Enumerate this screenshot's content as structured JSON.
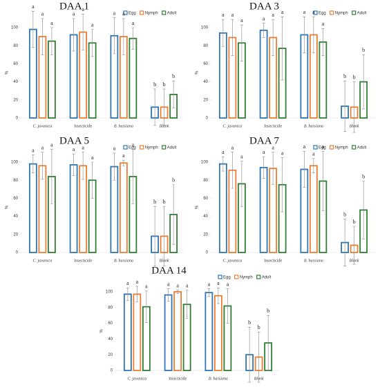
{
  "chart_data": [
    {
      "type": "bar",
      "title": "DAA 1",
      "ylabel": "%",
      "categories": [
        "C. javanica",
        "Insecticide",
        "B. bassiana",
        "Blank"
      ],
      "ylim": [
        0,
        100
      ],
      "yticks": [
        0,
        20,
        40,
        60,
        80,
        100
      ],
      "legend": "upper right",
      "series": [
        {
          "name": "Egg",
          "color": "#2e75b6",
          "values": [
            98,
            92,
            91,
            12
          ],
          "errors": [
            20,
            18,
            20,
            20
          ],
          "letters": [
            "a",
            "a",
            "a",
            "b"
          ]
        },
        {
          "name": "Nymph",
          "color": "#ed7d31",
          "values": [
            90,
            95,
            90,
            12
          ],
          "errors": [
            20,
            20,
            20,
            20
          ],
          "letters": [
            "a",
            "a",
            "a",
            "b"
          ]
        },
        {
          "name": "Adult",
          "color": "#2e7d32",
          "values": [
            85,
            83,
            88,
            26
          ],
          "errors": [
            15,
            15,
            12,
            15
          ],
          "letters": [
            "a",
            "a",
            "a",
            "b"
          ]
        }
      ]
    },
    {
      "type": "bar",
      "title": "DAA 3",
      "ylabel": "%",
      "categories": [
        "C. javanica",
        "Insecticide",
        "B. bassiana",
        "Blank"
      ],
      "ylim": [
        0,
        100
      ],
      "yticks": [
        0,
        20,
        40,
        60,
        80,
        100
      ],
      "legend": "upper right",
      "series": [
        {
          "name": "Egg",
          "color": "#2e75b6",
          "values": [
            94,
            97,
            92,
            13
          ],
          "errors": [
            15,
            8,
            20,
            28
          ],
          "letters": [
            "a",
            "a",
            "a",
            "b"
          ]
        },
        {
          "name": "Nymph",
          "color": "#ed7d31",
          "values": [
            89,
            89,
            92,
            12
          ],
          "errors": [
            20,
            20,
            20,
            28
          ],
          "letters": [
            "a",
            "a",
            "a",
            "b"
          ]
        },
        {
          "name": "Adult",
          "color": "#2e7d32",
          "values": [
            83,
            77,
            84,
            40
          ],
          "errors": [
            20,
            35,
            15,
            30
          ],
          "letters": [
            "a",
            "a",
            "a",
            "b"
          ]
        }
      ]
    },
    {
      "type": "bar",
      "title": "DAA 5",
      "ylabel": "%",
      "categories": [
        "C. javanica",
        "Insecticide",
        "B. bassiana",
        "Blank"
      ],
      "ylim": [
        0,
        100
      ],
      "yticks": [
        0,
        20,
        40,
        60,
        80,
        100
      ],
      "legend": "upper right",
      "series": [
        {
          "name": "Egg",
          "color": "#2e75b6",
          "values": [
            98,
            97,
            95,
            18
          ],
          "errors": [
            10,
            12,
            15,
            33
          ],
          "letters": [
            "a",
            "a",
            "a",
            "b"
          ]
        },
        {
          "name": "Nymph",
          "color": "#ed7d31",
          "values": [
            96,
            96,
            99,
            18
          ],
          "errors": [
            15,
            15,
            3,
            33
          ],
          "letters": [
            "a",
            "a",
            "a",
            "b"
          ]
        },
        {
          "name": "Adult",
          "color": "#2e7d32",
          "values": [
            84,
            80,
            84,
            42
          ],
          "errors": [
            30,
            20,
            30,
            33
          ],
          "letters": [
            "a",
            "a",
            "a",
            "b"
          ]
        }
      ]
    },
    {
      "type": "bar",
      "title": "DAA 7",
      "ylabel": "%",
      "categories": [
        "C. javanica",
        "Insecticide",
        "B. bassiana",
        "Blank"
      ],
      "ylim": [
        0,
        100
      ],
      "yticks": [
        0,
        20,
        40,
        60,
        80,
        100
      ],
      "legend": "upper right",
      "series": [
        {
          "name": "Egg",
          "color": "#2e75b6",
          "values": [
            98,
            94,
            92,
            11
          ],
          "errors": [
            8,
            12,
            20,
            26
          ],
          "letters": [
            "a",
            "a",
            "a",
            "b"
          ]
        },
        {
          "name": "Nymph",
          "color": "#ed7d31",
          "values": [
            91,
            93,
            96,
            8
          ],
          "errors": [
            20,
            18,
            8,
            21
          ],
          "letters": [
            "a",
            "a",
            "a",
            "b"
          ]
        },
        {
          "name": "Adult",
          "color": "#2e7d32",
          "values": [
            76,
            75,
            79,
            47
          ],
          "errors": [
            25,
            30,
            33,
            32
          ],
          "letters": [
            "a",
            "a",
            "a",
            "b"
          ]
        }
      ]
    },
    {
      "type": "bar",
      "title": "DAA 14",
      "ylabel": "%",
      "categories": [
        "C. javanica",
        "Insecticide",
        "B. bassiana",
        "Blank"
      ],
      "ylim": [
        0,
        100
      ],
      "yticks": [
        0,
        20,
        40,
        60,
        80,
        100
      ],
      "legend": "upper right",
      "series": [
        {
          "name": "Egg",
          "color": "#2e75b6",
          "values": [
            97,
            96,
            99,
            20
          ],
          "errors": [
            8,
            8,
            5,
            35
          ],
          "letters": [
            "a",
            "a",
            "a",
            "b"
          ]
        },
        {
          "name": "Nymph",
          "color": "#ed7d31",
          "values": [
            97,
            100,
            95,
            17
          ],
          "errors": [
            10,
            2,
            10,
            32
          ],
          "letters": [
            "a",
            "a",
            "a",
            "b"
          ]
        },
        {
          "name": "Adult",
          "color": "#2e7d32",
          "values": [
            81,
            84,
            82,
            35
          ],
          "errors": [
            20,
            18,
            22,
            35
          ],
          "letters": [
            "a",
            "a",
            "a",
            "b"
          ]
        }
      ]
    }
  ]
}
